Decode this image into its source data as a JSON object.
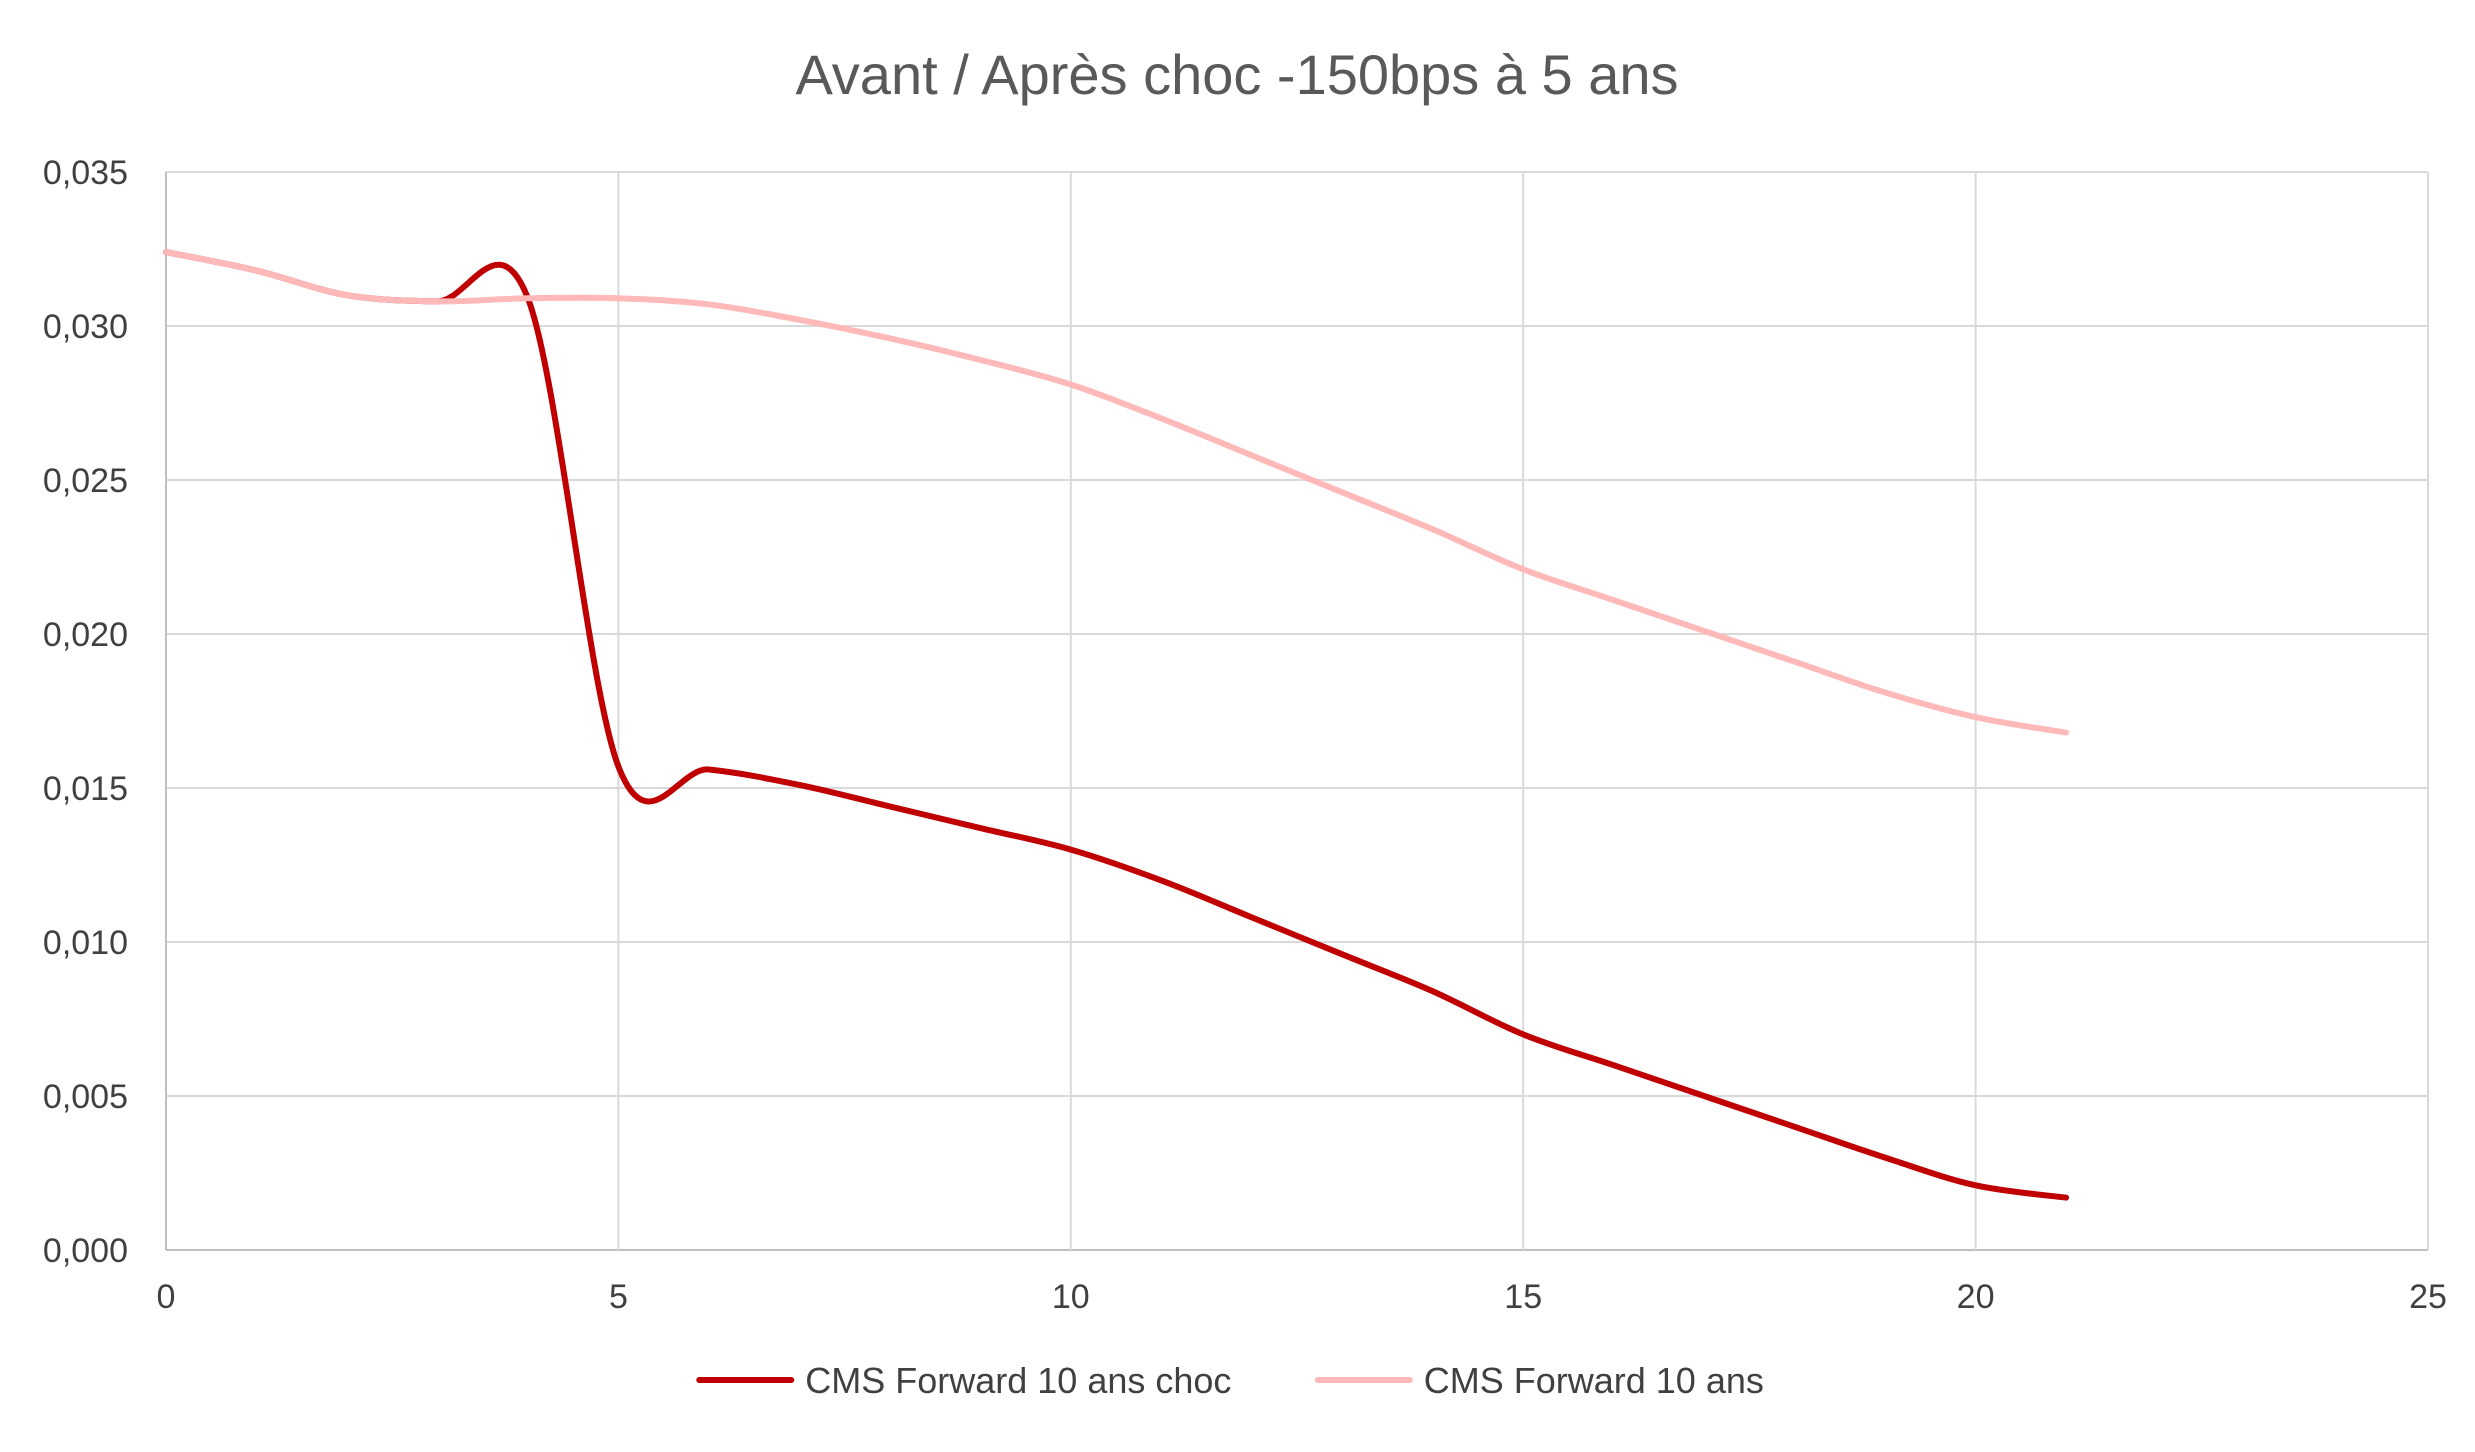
{
  "chart_data": {
    "type": "line",
    "title": "Avant / Après choc -150bps à 5 ans",
    "xlabel": "",
    "ylabel": "",
    "xlim": [
      0,
      25
    ],
    "ylim": [
      0,
      0.035
    ],
    "x_ticks": [
      "0",
      "5",
      "10",
      "15",
      "20",
      "25"
    ],
    "y_ticks": [
      "0,000",
      "0,005",
      "0,010",
      "0,015",
      "0,020",
      "0,025",
      "0,030",
      "0,035"
    ],
    "grid": true,
    "legend_position": "bottom",
    "series": [
      {
        "name": "CMS Forward 10 ans choc",
        "color": "#C00000",
        "points": [
          [
            0,
            0.0324
          ],
          [
            1,
            0.0318
          ],
          [
            2,
            0.031
          ],
          [
            3,
            0.0308
          ],
          [
            4,
            0.0309
          ],
          [
            5,
            0.0157
          ],
          [
            6,
            0.0156
          ],
          [
            7,
            0.0151
          ],
          [
            8,
            0.0144
          ],
          [
            9,
            0.0137
          ],
          [
            10,
            0.013
          ],
          [
            11,
            0.012
          ],
          [
            12,
            0.0108
          ],
          [
            13,
            0.0096
          ],
          [
            14,
            0.0084
          ],
          [
            15,
            0.007
          ],
          [
            16,
            0.006
          ],
          [
            17,
            0.005
          ],
          [
            18,
            0.004
          ],
          [
            19,
            0.003
          ],
          [
            20,
            0.0021
          ],
          [
            21,
            0.0017
          ]
        ]
      },
      {
        "name": "CMS Forward 10 ans",
        "color": "#FFB9B9",
        "points": [
          [
            0,
            0.0324
          ],
          [
            1,
            0.0318
          ],
          [
            2,
            0.031
          ],
          [
            3,
            0.0308
          ],
          [
            4,
            0.0309
          ],
          [
            5,
            0.0309
          ],
          [
            6,
            0.0307
          ],
          [
            7,
            0.0302
          ],
          [
            8,
            0.0296
          ],
          [
            9,
            0.0289
          ],
          [
            10,
            0.0281
          ],
          [
            11,
            0.027
          ],
          [
            12,
            0.0258
          ],
          [
            13,
            0.0246
          ],
          [
            14,
            0.0234
          ],
          [
            15,
            0.0221
          ],
          [
            16,
            0.0211
          ],
          [
            17,
            0.0201
          ],
          [
            18,
            0.0191
          ],
          [
            19,
            0.0181
          ],
          [
            20,
            0.0173
          ],
          [
            21,
            0.0168
          ]
        ]
      }
    ]
  }
}
